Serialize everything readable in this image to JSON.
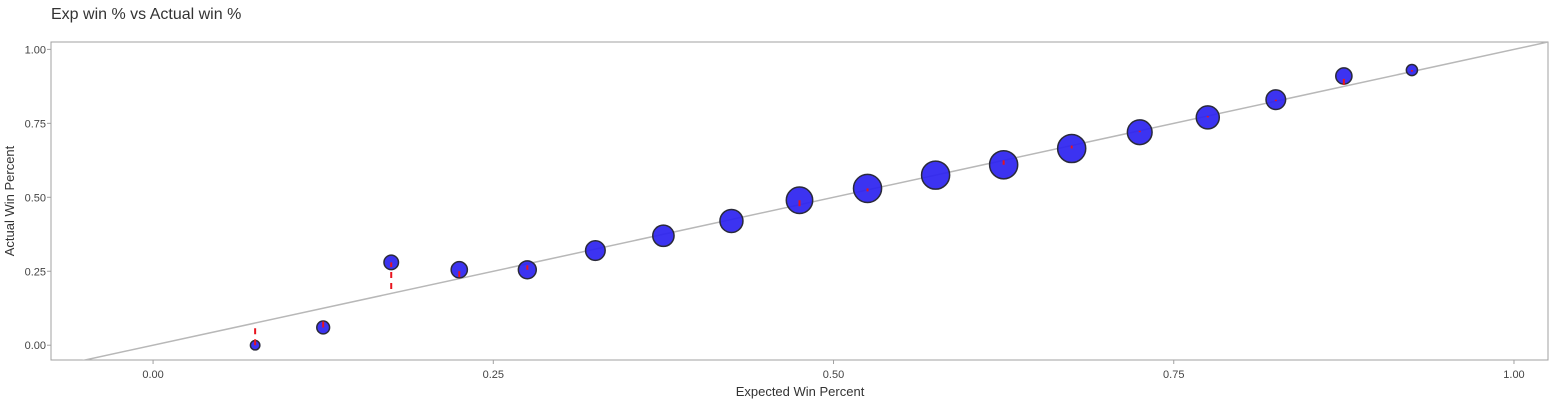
{
  "chart_data": {
    "type": "scatter",
    "title": "Exp win % vs Actual win %",
    "xlabel": "Expected Win Percent",
    "ylabel": "Actual Win Percent",
    "xlim": [
      -0.075,
      1.025
    ],
    "ylim": [
      -0.05,
      1.025
    ],
    "x_ticks": [
      0.0,
      0.25,
      0.5,
      0.75,
      1.0
    ],
    "x_tick_labels": [
      "0.00",
      "0.25",
      "0.50",
      "0.75",
      "1.00"
    ],
    "y_ticks": [
      0.0,
      0.25,
      0.5,
      0.75,
      1.0
    ],
    "y_tick_labels": [
      "0.00",
      "0.25",
      "0.50",
      "0.75",
      "1.00"
    ],
    "grid": false,
    "reference_line": "y = x",
    "colors": {
      "point_fill": "#2b22f0",
      "point_stroke": "#2a2a3a",
      "error_bar": "#e8141e",
      "reference_line": "#b8b8b8",
      "frame": "#a0a0a0"
    },
    "series": [
      {
        "points": [
          {
            "x": 0.075,
            "y": 0.0,
            "size": 2,
            "err_low": 0.0,
            "err_high": 0.07
          },
          {
            "x": 0.125,
            "y": 0.06,
            "size": 4,
            "err_low": 0.06,
            "err_high": 0.09
          },
          {
            "x": 0.175,
            "y": 0.28,
            "size": 5,
            "err_low": 0.19,
            "err_high": 0.28
          },
          {
            "x": 0.225,
            "y": 0.255,
            "size": 6,
            "err_low": 0.23,
            "err_high": 0.255
          },
          {
            "x": 0.275,
            "y": 0.255,
            "size": 7,
            "err_low": 0.255,
            "err_high": 0.27
          },
          {
            "x": 0.325,
            "y": 0.32,
            "size": 8,
            "err_low": 0.32,
            "err_high": 0.32
          },
          {
            "x": 0.375,
            "y": 0.37,
            "size": 9,
            "err_low": 0.37,
            "err_high": 0.37
          },
          {
            "x": 0.425,
            "y": 0.42,
            "size": 10,
            "err_low": 0.42,
            "err_high": 0.42
          },
          {
            "x": 0.475,
            "y": 0.49,
            "size": 12,
            "err_low": 0.47,
            "err_high": 0.49
          },
          {
            "x": 0.525,
            "y": 0.53,
            "size": 13,
            "err_low": 0.52,
            "err_high": 0.53
          },
          {
            "x": 0.575,
            "y": 0.575,
            "size": 13,
            "err_low": 0.575,
            "err_high": 0.575
          },
          {
            "x": 0.625,
            "y": 0.61,
            "size": 13,
            "err_low": 0.61,
            "err_high": 0.625
          },
          {
            "x": 0.675,
            "y": 0.665,
            "size": 13,
            "err_low": 0.665,
            "err_high": 0.675
          },
          {
            "x": 0.725,
            "y": 0.72,
            "size": 11,
            "err_low": 0.72,
            "err_high": 0.725
          },
          {
            "x": 0.775,
            "y": 0.77,
            "size": 10,
            "err_low": 0.77,
            "err_high": 0.775
          },
          {
            "x": 0.825,
            "y": 0.83,
            "size": 8,
            "err_low": 0.825,
            "err_high": 0.83
          },
          {
            "x": 0.875,
            "y": 0.91,
            "size": 6,
            "err_low": 0.88,
            "err_high": 0.91
          },
          {
            "x": 0.925,
            "y": 0.93,
            "size": 3,
            "err_low": 0.925,
            "err_high": 0.93
          }
        ]
      }
    ]
  }
}
